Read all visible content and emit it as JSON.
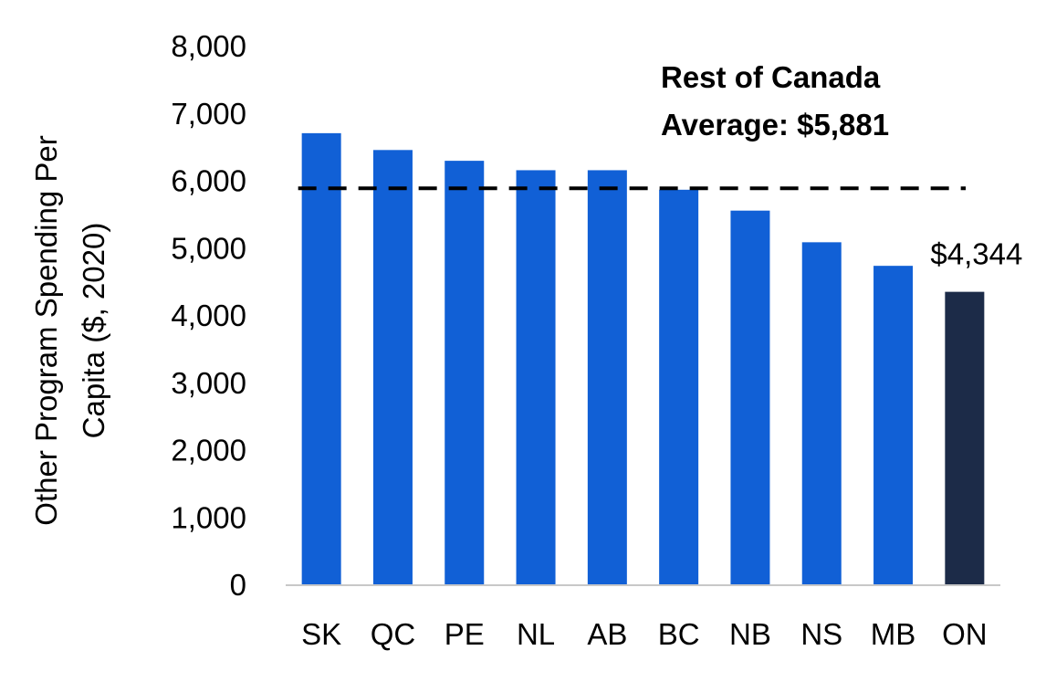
{
  "chart_data": {
    "type": "bar",
    "categories": [
      "SK",
      "QC",
      "PE",
      "NL",
      "AB",
      "BC",
      "NB",
      "NS",
      "MB",
      "ON"
    ],
    "values": [
      6700,
      6450,
      6290,
      6150,
      6150,
      5860,
      5550,
      5080,
      4730,
      4344
    ],
    "highlight_category": "ON",
    "ylabel_line1": "Other Program Spending Per",
    "ylabel_line2": "Capita ($, 2020)",
    "ylim": [
      0,
      8000
    ],
    "yticks": [
      0,
      1000,
      2000,
      3000,
      4000,
      5000,
      6000,
      7000,
      8000
    ],
    "ytick_labels": [
      "0",
      "1,000",
      "2,000",
      "3,000",
      "4,000",
      "5,000",
      "6,000",
      "7,000",
      "8,000"
    ],
    "grid": false,
    "reference_line": {
      "value": 5881,
      "style": "dashed",
      "label_line1": "Rest of Canada",
      "label_line2": "Average: $5,881"
    },
    "data_label": {
      "category": "ON",
      "text": "$4,344"
    },
    "colors": {
      "bar": "#1160d6",
      "highlight": "#1c2b48",
      "reference_line": "#000000",
      "axis": "#c8c8c8"
    }
  }
}
